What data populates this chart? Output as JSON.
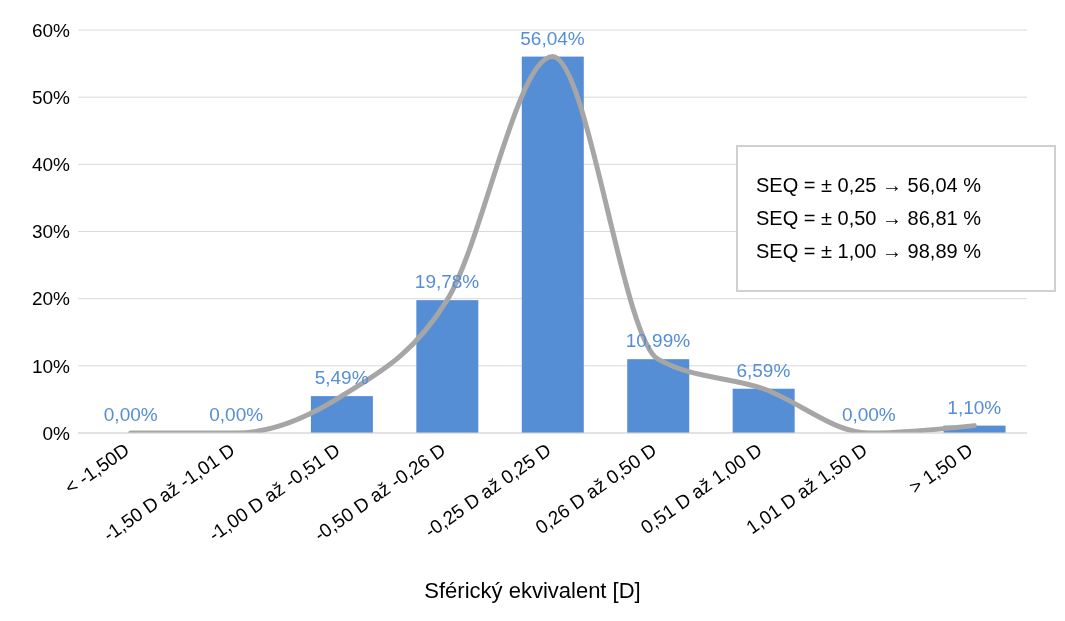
{
  "chart_data": {
    "type": "bar",
    "xlabel": "Sférický ekvivalent [D]",
    "categories": [
      "< -1,50D",
      "-1,50 D až -1,01 D",
      "-1,00 D až -0,51 D",
      "-0,50 D až -0,26 D",
      "-0,25 D až 0,25 D",
      "0,26 D až 0,50 D",
      "0,51 D až 1,00 D",
      "1,01 D až 1,50 D",
      "> 1,50 D"
    ],
    "series": [
      {
        "type": "bar",
        "color": "#558ed5",
        "values": [
          0,
          0,
          5.49,
          19.78,
          56.04,
          10.99,
          6.59,
          0,
          1.1
        ],
        "value_labels": [
          "0,00%",
          "0,00%",
          "5,49%",
          "19,78%",
          "56,04%",
          "10,99%",
          "6,59%",
          "0,00%",
          "1,10%"
        ]
      },
      {
        "type": "line",
        "color": "#a6a6a6",
        "values": [
          0,
          0,
          5.49,
          19.78,
          56.04,
          10.99,
          6.59,
          0,
          1.1
        ]
      }
    ],
    "ylim": [
      0,
      60
    ],
    "yticks": [
      {
        "value": 0,
        "label": "0%"
      },
      {
        "value": 10,
        "label": "10%"
      },
      {
        "value": 20,
        "label": "20%"
      },
      {
        "value": 30,
        "label": "30%"
      },
      {
        "value": 40,
        "label": "40%"
      },
      {
        "value": 50,
        "label": "50%"
      },
      {
        "value": 60,
        "label": "60%"
      }
    ],
    "grid": "y",
    "marker": "none",
    "line_style": "solid",
    "annotations": [
      "SEQ = ± 0,25 → 56,04 %",
      "SEQ = ± 0,50 → 86,81 %",
      "SEQ = ± 1,00 → 98,89 %"
    ]
  }
}
